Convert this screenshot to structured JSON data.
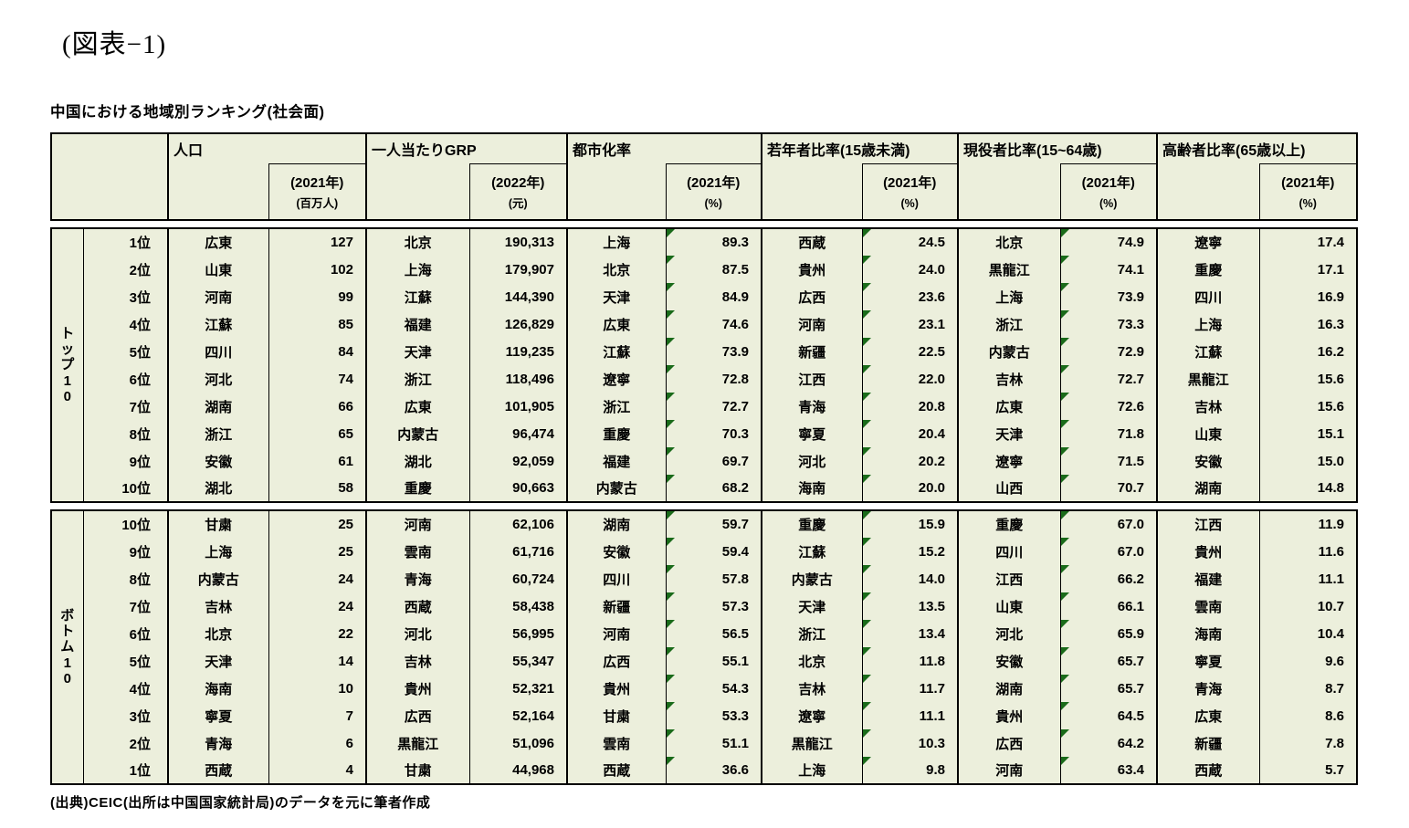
{
  "page": {
    "title": "(図表−1)",
    "subtitle": "中国における地域別ランキング(社会面)",
    "source": "(出典)CEIC(出所は中国国家統計局)のデータを元に筆者作成"
  },
  "table": {
    "column_groups": [
      {
        "title": "人口",
        "year": "(2021年)",
        "unit": "(百万人)"
      },
      {
        "title": "一人当たりGRP",
        "year": "(2022年)",
        "unit": "(元)"
      },
      {
        "title": "都市化率",
        "year": "(2021年)",
        "unit": "(%)"
      },
      {
        "title": "若年者比率(15歳未満)",
        "year": "(2021年)",
        "unit": "(%)"
      },
      {
        "title": "現役者比率(15~64歳)",
        "year": "(2021年)",
        "unit": "(%)"
      },
      {
        "title": "高齢者比率(65歳以上)",
        "year": "(2021年)",
        "unit": "(%)"
      }
    ],
    "flag_value_columns": [
      6,
      8,
      10
    ],
    "flag_color": "#1A6B1A",
    "cell_background": "#ECEFDC",
    "groups": [
      {
        "label": "トップ10",
        "rows": [
          [
            "1位",
            "広東",
            "127",
            "北京",
            "190,313",
            "上海",
            "89.3",
            "西蔵",
            "24.5",
            "北京",
            "74.9",
            "遼寧",
            "17.4"
          ],
          [
            "2位",
            "山東",
            "102",
            "上海",
            "179,907",
            "北京",
            "87.5",
            "貴州",
            "24.0",
            "黒龍江",
            "74.1",
            "重慶",
            "17.1"
          ],
          [
            "3位",
            "河南",
            "99",
            "江蘇",
            "144,390",
            "天津",
            "84.9",
            "広西",
            "23.6",
            "上海",
            "73.9",
            "四川",
            "16.9"
          ],
          [
            "4位",
            "江蘇",
            "85",
            "福建",
            "126,829",
            "広東",
            "74.6",
            "河南",
            "23.1",
            "浙江",
            "73.3",
            "上海",
            "16.3"
          ],
          [
            "5位",
            "四川",
            "84",
            "天津",
            "119,235",
            "江蘇",
            "73.9",
            "新疆",
            "22.5",
            "内蒙古",
            "72.9",
            "江蘇",
            "16.2"
          ],
          [
            "6位",
            "河北",
            "74",
            "浙江",
            "118,496",
            "遼寧",
            "72.8",
            "江西",
            "22.0",
            "吉林",
            "72.7",
            "黒龍江",
            "15.6"
          ],
          [
            "7位",
            "湖南",
            "66",
            "広東",
            "101,905",
            "浙江",
            "72.7",
            "青海",
            "20.8",
            "広東",
            "72.6",
            "吉林",
            "15.6"
          ],
          [
            "8位",
            "浙江",
            "65",
            "内蒙古",
            "96,474",
            "重慶",
            "70.3",
            "寧夏",
            "20.4",
            "天津",
            "71.8",
            "山東",
            "15.1"
          ],
          [
            "9位",
            "安徽",
            "61",
            "湖北",
            "92,059",
            "福建",
            "69.7",
            "河北",
            "20.2",
            "遼寧",
            "71.5",
            "安徽",
            "15.0"
          ],
          [
            "10位",
            "湖北",
            "58",
            "重慶",
            "90,663",
            "内蒙古",
            "68.2",
            "海南",
            "20.0",
            "山西",
            "70.7",
            "湖南",
            "14.8"
          ]
        ]
      },
      {
        "label": "ボトム10",
        "rows": [
          [
            "10位",
            "甘粛",
            "25",
            "河南",
            "62,106",
            "湖南",
            "59.7",
            "重慶",
            "15.9",
            "重慶",
            "67.0",
            "江西",
            "11.9"
          ],
          [
            "9位",
            "上海",
            "25",
            "雲南",
            "61,716",
            "安徽",
            "59.4",
            "江蘇",
            "15.2",
            "四川",
            "67.0",
            "貴州",
            "11.6"
          ],
          [
            "8位",
            "内蒙古",
            "24",
            "青海",
            "60,724",
            "四川",
            "57.8",
            "内蒙古",
            "14.0",
            "江西",
            "66.2",
            "福建",
            "11.1"
          ],
          [
            "7位",
            "吉林",
            "24",
            "西蔵",
            "58,438",
            "新疆",
            "57.3",
            "天津",
            "13.5",
            "山東",
            "66.1",
            "雲南",
            "10.7"
          ],
          [
            "6位",
            "北京",
            "22",
            "河北",
            "56,995",
            "河南",
            "56.5",
            "浙江",
            "13.4",
            "河北",
            "65.9",
            "海南",
            "10.4"
          ],
          [
            "5位",
            "天津",
            "14",
            "吉林",
            "55,347",
            "広西",
            "55.1",
            "北京",
            "11.8",
            "安徽",
            "65.7",
            "寧夏",
            "9.6"
          ],
          [
            "4位",
            "海南",
            "10",
            "貴州",
            "52,321",
            "貴州",
            "54.3",
            "吉林",
            "11.7",
            "湖南",
            "65.7",
            "青海",
            "8.7"
          ],
          [
            "3位",
            "寧夏",
            "7",
            "広西",
            "52,164",
            "甘粛",
            "53.3",
            "遼寧",
            "11.1",
            "貴州",
            "64.5",
            "広東",
            "8.6"
          ],
          [
            "2位",
            "青海",
            "6",
            "黒龍江",
            "51,096",
            "雲南",
            "51.1",
            "黒龍江",
            "10.3",
            "広西",
            "64.2",
            "新疆",
            "7.8"
          ],
          [
            "1位",
            "西蔵",
            "4",
            "甘粛",
            "44,968",
            "西蔵",
            "36.6",
            "上海",
            "9.8",
            "河南",
            "63.4",
            "西蔵",
            "5.7"
          ]
        ]
      }
    ]
  }
}
